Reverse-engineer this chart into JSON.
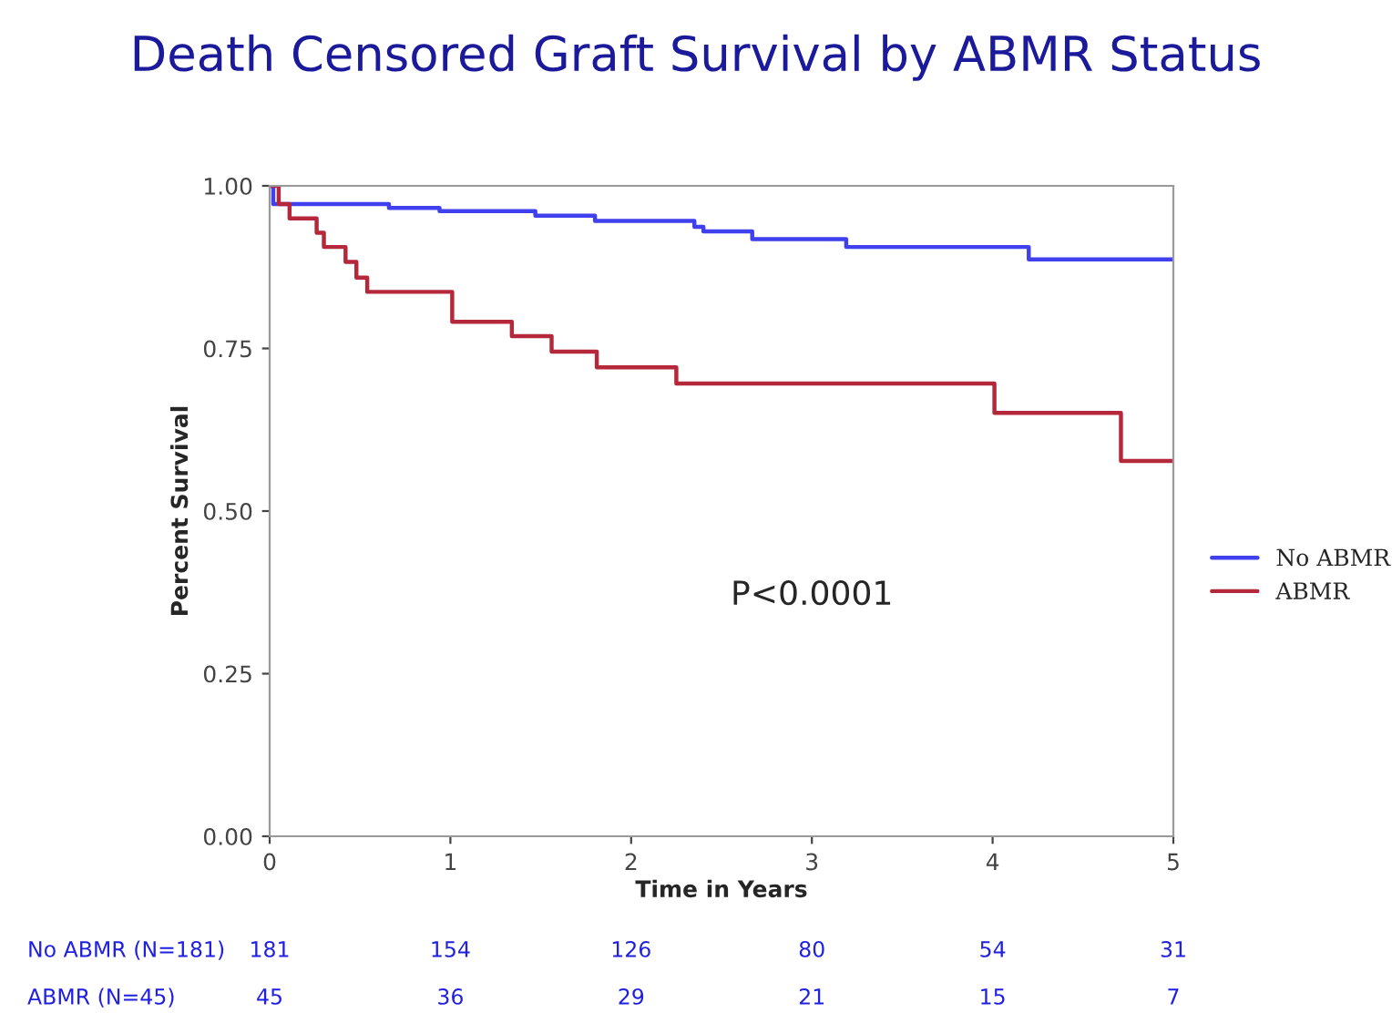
{
  "chart_data": {
    "type": "step",
    "title": "Death Censored Graft Survival by ABMR Status",
    "xlabel": "Time in Years",
    "ylabel": "Percent Survival",
    "series": [
      {
        "name": "No ABMR",
        "color": "#4040ee",
        "x": [
          0,
          0.02,
          0.66,
          0.94,
          1.47,
          1.8,
          2.35,
          2.4,
          2.67,
          3.19,
          4.2,
          5.0
        ],
        "values": [
          1.0,
          0.972,
          0.966,
          0.961,
          0.954,
          0.946,
          0.937,
          0.93,
          0.918,
          0.906,
          0.887,
          0.887
        ]
      },
      {
        "name": "ABMR",
        "color": "#b5283c",
        "x": [
          0,
          0.05,
          0.11,
          0.26,
          0.3,
          0.42,
          0.48,
          0.54,
          1.01,
          1.34,
          1.56,
          1.81,
          2.25,
          4.01,
          4.71,
          5.0
        ],
        "values": [
          1.0,
          0.972,
          0.95,
          0.928,
          0.906,
          0.883,
          0.859,
          0.837,
          0.791,
          0.769,
          0.745,
          0.721,
          0.696,
          0.651,
          0.577,
          0.577
        ]
      }
    ],
    "xlim": [
      0,
      5
    ],
    "xticks": [
      0,
      1,
      2,
      3,
      4,
      5
    ],
    "ylim": [
      0,
      1
    ],
    "yticks": [
      {
        "value": 0,
        "label": "0.00"
      },
      {
        "value": 0.25,
        "label": "0.25"
      },
      {
        "value": 0.5,
        "label": "0.50"
      },
      {
        "value": 0.75,
        "label": "0.75"
      },
      {
        "value": 1,
        "label": "1.00"
      }
    ],
    "grid": false,
    "legend": "right",
    "marker": "none",
    "line_style": "solid",
    "annotations": [
      "P<0.0001",
      "No ABMR (N=181)",
      "181",
      "154",
      "126",
      "80",
      "54",
      "31",
      "ABMR (N=45)",
      "45",
      "36",
      "29",
      "21",
      "15",
      "7"
    ]
  }
}
